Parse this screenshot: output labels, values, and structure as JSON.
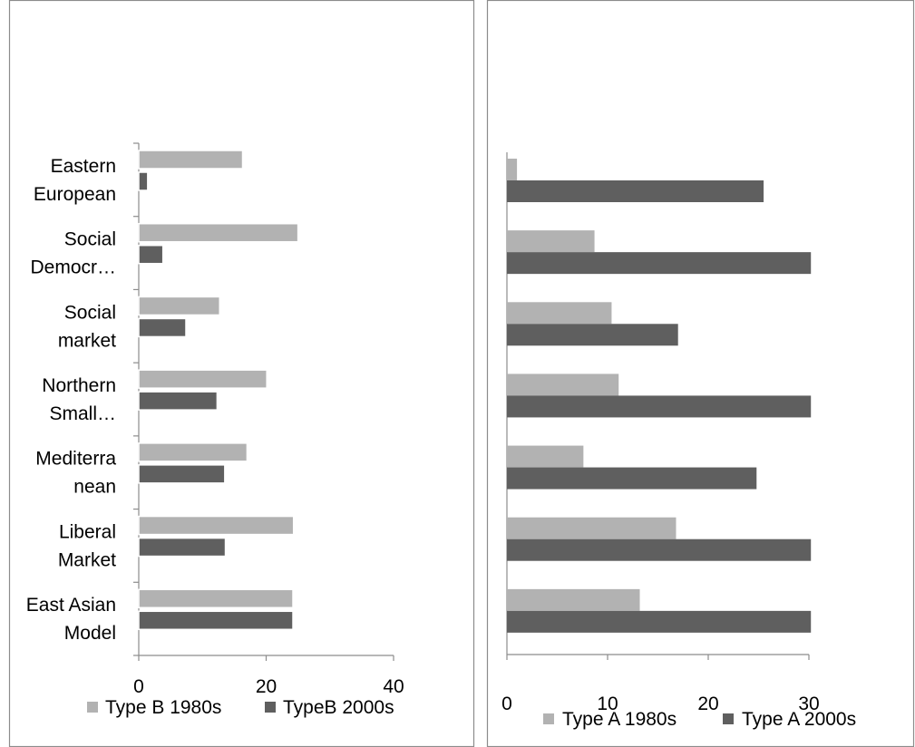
{
  "chart_data": [
    {
      "type": "bar",
      "orientation": "horizontal",
      "categories": [
        "Eastern European",
        "Social Democr…",
        "Social market",
        "Northern Small…",
        "Mediterra nean",
        "Liberal Market",
        "East Asian Model"
      ],
      "category_lines": [
        [
          "Eastern",
          "European"
        ],
        [
          "Social",
          "Democr…"
        ],
        [
          "Social",
          "market"
        ],
        [
          "Northern",
          "Small…"
        ],
        [
          "Mediterra",
          "nean"
        ],
        [
          "Liberal",
          "Market"
        ],
        [
          "East Asian",
          "Model"
        ]
      ],
      "series": [
        {
          "name": "Type B 1980s",
          "values": [
            16.3,
            25.0,
            12.7,
            20.1,
            17.0,
            24.3,
            24.2
          ],
          "color": "#b2b2b2"
        },
        {
          "name": "TypeB 2000s",
          "values": [
            1.4,
            3.8,
            7.4,
            12.3,
            13.5,
            13.6,
            24.2
          ],
          "color": "#5f5f5f"
        }
      ],
      "x_ticks": [
        "0",
        "20",
        "40"
      ],
      "xlim": [
        0,
        40
      ],
      "grid": false,
      "legend_position": "bottom"
    },
    {
      "type": "bar",
      "orientation": "horizontal",
      "categories": [
        "",
        "",
        "",
        "",
        "",
        "",
        ""
      ],
      "series": [
        {
          "name": "Type A 1980s",
          "values": [
            1.0,
            8.7,
            10.4,
            11.1,
            7.6,
            16.8,
            13.2
          ],
          "color": "#b2b2b2"
        },
        {
          "name": "Type A  2000s",
          "values": [
            25.5,
            30.2,
            17.0,
            30.2,
            24.8,
            30.2,
            30.2
          ],
          "color": "#5f5f5f"
        }
      ],
      "x_ticks": [
        "0",
        "10",
        "20",
        "30"
      ],
      "xlim": [
        0,
        30
      ],
      "grid": false,
      "legend_position": "bottom"
    }
  ]
}
